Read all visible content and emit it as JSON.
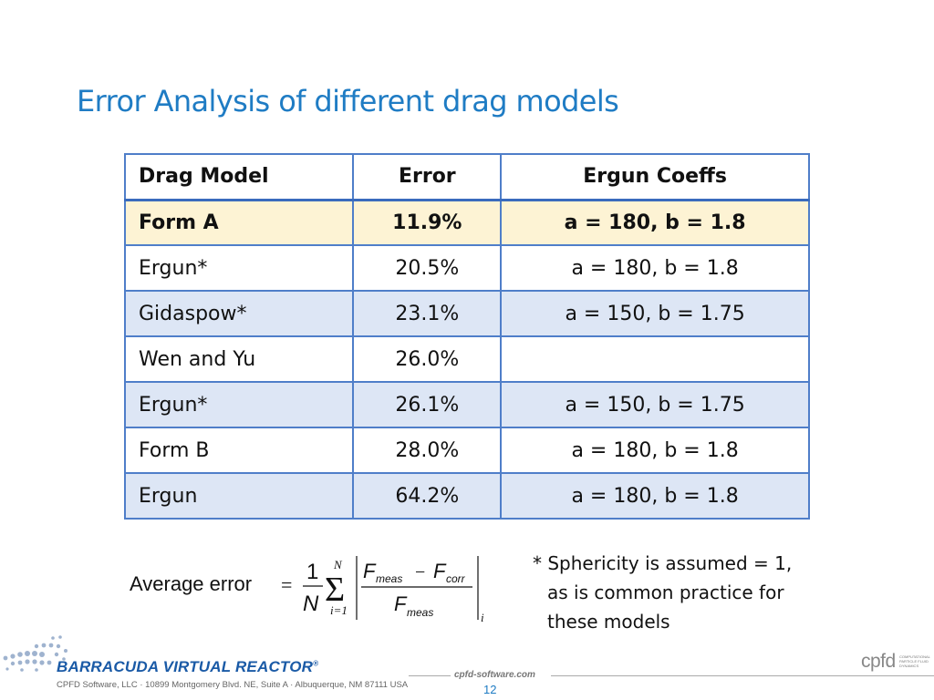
{
  "slide": {
    "title": "Error Analysis of different drag models",
    "page_number": "12"
  },
  "table": {
    "headers": [
      "Drag Model",
      "Error",
      "Ergun Coeffs"
    ],
    "rows": [
      {
        "model": "Form A",
        "error": "11.9%",
        "coeffs": "a = 180, b = 1.8"
      },
      {
        "model": "Ergun*",
        "error": "20.5%",
        "coeffs": "a = 180, b = 1.8"
      },
      {
        "model": "Gidaspow*",
        "error": "23.1%",
        "coeffs": "a = 150, b = 1.75"
      },
      {
        "model": "Wen and Yu",
        "error": "26.0%",
        "coeffs": ""
      },
      {
        "model": "Ergun*",
        "error": "26.1%",
        "coeffs": "a = 150, b = 1.75"
      },
      {
        "model": "Form B",
        "error": "28.0%",
        "coeffs": "a = 180, b = 1.8"
      },
      {
        "model": "Ergun",
        "error": "64.2%",
        "coeffs": "a = 180, b = 1.8"
      }
    ]
  },
  "formula": {
    "label": "Average error",
    "equals": "=",
    "one": "1",
    "N": "N",
    "sum_upper": "N",
    "sum_lower": "i=1",
    "F": "F",
    "meas": "meas",
    "corr": "corr",
    "minus": "−",
    "index": "i"
  },
  "footnote": {
    "line1": "* Sphericity is assumed = 1,",
    "line2": "as is common practice for",
    "line3": "these models"
  },
  "footer": {
    "brand": "BARRACUDA VIRTUAL REACTOR",
    "trademark": "®",
    "address": "CPFD Software, LLC · 10899 Montgomery Blvd. NE, Suite A · Albuquerque, NM 87111 USA",
    "website": "cpfd-software.com",
    "logo_text": "cpfd",
    "logo_tagline": "COMPUTATIONAL PARTICLE FLUID DYNAMICS"
  },
  "colors": {
    "title": "#1f7cc4",
    "table_border": "#4f7ec9",
    "row_highlight": "#fdf3d4",
    "row_band": "#dde6f5",
    "brand": "#1a5aa6"
  }
}
